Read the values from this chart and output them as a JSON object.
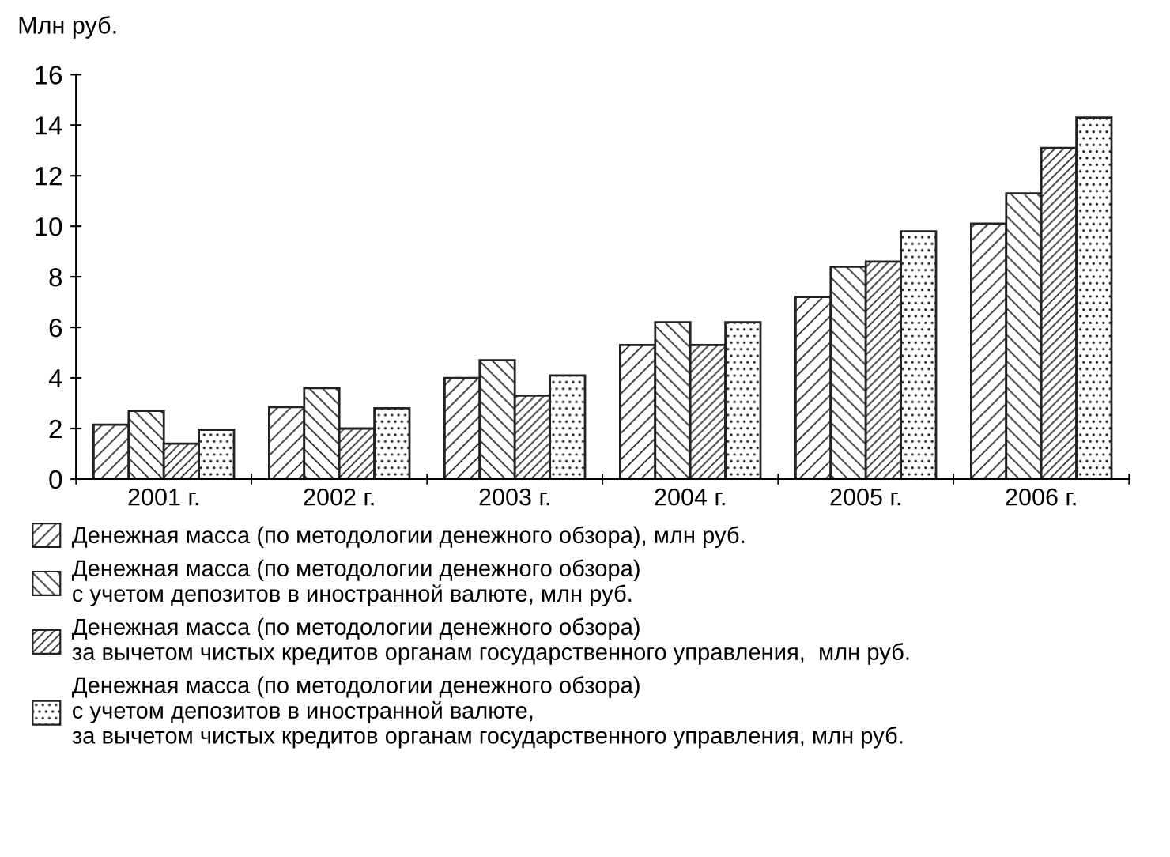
{
  "chart_data": {
    "type": "bar",
    "ylabel": "Млн руб.",
    "categories": [
      "2001 г.",
      "2002 г.",
      "2003 г.",
      "2004 г.",
      "2005 г.",
      "2006 г."
    ],
    "series": [
      {
        "name": "Денежная масса (по методологии денежного обзора), млн руб.",
        "color": "#222222",
        "values": [
          2.15,
          2.85,
          4.0,
          5.3,
          7.2,
          10.1
        ]
      },
      {
        "name": "Денежная масса (по методологии денежного обзора)\nс учетом депозитов в иностранной валюте, млн руб.",
        "color": "#222222",
        "values": [
          2.7,
          3.6,
          4.7,
          6.2,
          8.4,
          11.3
        ]
      },
      {
        "name": "Денежная масса (по методологии денежного обзора)\nза вычетом чистых кредитов органам государственного управления,  млн руб.",
        "color": "#222222",
        "values": [
          1.4,
          2.0,
          3.3,
          5.3,
          8.6,
          13.1
        ]
      },
      {
        "name": "Денежная масса (по методологии денежного обзора)\nс учетом депозитов в иностранной валюте,\nза вычетом чистых кредитов органам государственного управления, млн руб.",
        "color": "#222222",
        "values": [
          1.95,
          2.8,
          4.1,
          6.2,
          9.8,
          14.3
        ]
      }
    ],
    "ylim": [
      0,
      16
    ],
    "yticks": [
      0,
      2,
      4,
      6,
      8,
      10,
      12,
      14,
      16
    ],
    "grid": false,
    "legend": "bottom"
  }
}
